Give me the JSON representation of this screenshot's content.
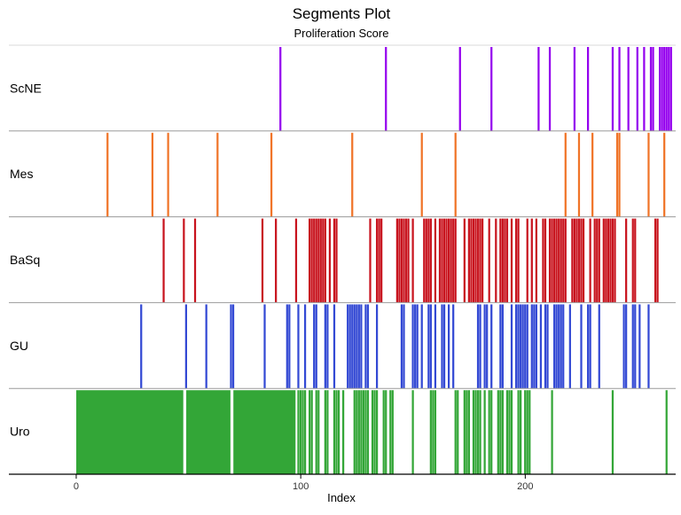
{
  "chart_data": {
    "type": "bar",
    "title": "Segments Plot",
    "subtitle": "Proliferation Score",
    "xlabel": "Index",
    "ylabel": "",
    "xlim": [
      -30,
      267
    ],
    "xticks": [
      0,
      100,
      200
    ],
    "grid": false,
    "categories": [
      "ScNE",
      "Mes",
      "BaSq",
      "GU",
      "Uro"
    ],
    "colors": {
      "ScNE": "#9400EE",
      "Mes": "#F07428",
      "BaSq": "#C8141E",
      "GU": "#3349D4",
      "Uro": "#33A637"
    },
    "series": [
      {
        "name": "ScNE",
        "x": [
          91,
          138,
          171,
          185,
          206,
          211,
          222,
          228,
          239,
          242,
          246,
          250,
          253,
          256,
          257,
          260,
          261,
          262,
          263,
          264,
          265
        ]
      },
      {
        "name": "Mes",
        "x": [
          14,
          34,
          41,
          63,
          87,
          123,
          154,
          169,
          218,
          224,
          230,
          241,
          242,
          255,
          262
        ]
      },
      {
        "name": "BaSq",
        "x": [
          39,
          48,
          53,
          83,
          89,
          98,
          104,
          105,
          106,
          107,
          108,
          109,
          110,
          111,
          113,
          115,
          116,
          131,
          134,
          135,
          136,
          143,
          144,
          145,
          146,
          147,
          148,
          150,
          155,
          156,
          157,
          158,
          160,
          162,
          163,
          164,
          165,
          166,
          167,
          168,
          169,
          173,
          175,
          176,
          177,
          178,
          179,
          180,
          181,
          184,
          187,
          189,
          190,
          191,
          192,
          194,
          196,
          197,
          201,
          203,
          205,
          208,
          209,
          211,
          212,
          213,
          214,
          215,
          216,
          217,
          218,
          221,
          222,
          223,
          224,
          225,
          226,
          229,
          231,
          232,
          233,
          235,
          236,
          237,
          238,
          239,
          240,
          245,
          248,
          249,
          258,
          259
        ]
      },
      {
        "name": "GU",
        "x": [
          29,
          49,
          58,
          69,
          70,
          84,
          94,
          95,
          99,
          102,
          106,
          107,
          111,
          112,
          115,
          121,
          122,
          123,
          124,
          125,
          126,
          127,
          129,
          130,
          134,
          145,
          146,
          150,
          151,
          152,
          154,
          157,
          158,
          160,
          163,
          164,
          166,
          168,
          179,
          180,
          182,
          183,
          185,
          189,
          190,
          194,
          196,
          197,
          198,
          199,
          200,
          201,
          203,
          204,
          205,
          207,
          209,
          210,
          213,
          214,
          215,
          216,
          217,
          220,
          225,
          228,
          229,
          233,
          244,
          245,
          248,
          249,
          251,
          255
        ]
      },
      {
        "name": "Uro",
        "segments": [
          [
            0,
            48
          ],
          [
            49,
            69
          ],
          [
            70,
            98
          ]
        ],
        "x": [
          99,
          100,
          101,
          102,
          104,
          105,
          107,
          108,
          111,
          112,
          115,
          116,
          117,
          119,
          124,
          125,
          126,
          127,
          128,
          129,
          130,
          132,
          133,
          134,
          137,
          138,
          140,
          141,
          150,
          158,
          159,
          160,
          169,
          170,
          173,
          174,
          175,
          177,
          178,
          179,
          180,
          182,
          184,
          185,
          188,
          189,
          190,
          192,
          193,
          194,
          197,
          198,
          200,
          201,
          202,
          212,
          239,
          263
        ]
      }
    ]
  }
}
